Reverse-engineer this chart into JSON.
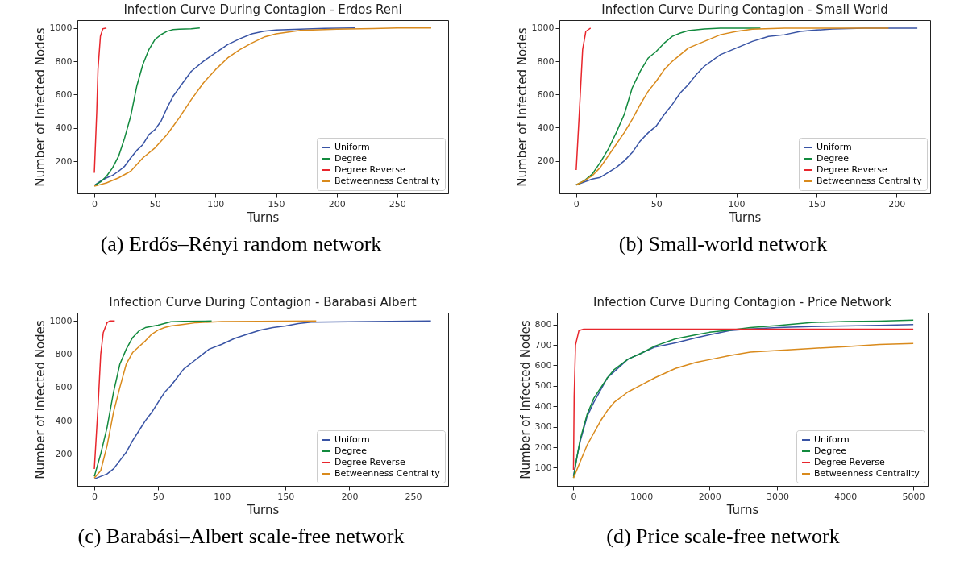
{
  "chart_data": [
    {
      "type": "line",
      "title": "Infection Curve During Contagion - Erdos Reni",
      "xlabel": "Turns",
      "ylabel": "Number of Infected Nodes",
      "xlim": [
        -14,
        292
      ],
      "ylim": [
        7,
        1047
      ],
      "xticks": [
        0,
        50,
        100,
        150,
        200,
        250
      ],
      "yticks": [
        200,
        400,
        600,
        800,
        1000
      ],
      "grid": false,
      "legend": "bottom right",
      "marker": "none",
      "line_style": "solid",
      "annotations": [
        "(a) Erdős–Rényi random network"
      ],
      "series": [
        {
          "name": "Uniform",
          "color": "#3853a4",
          "x": [
            0,
            5,
            10,
            15,
            20,
            25,
            30,
            35,
            40,
            45,
            50,
            55,
            60,
            65,
            70,
            75,
            80,
            90,
            100,
            110,
            120,
            130,
            140,
            150,
            170,
            190,
            215
          ],
          "values": [
            55,
            80,
            100,
            115,
            140,
            170,
            220,
            265,
            300,
            360,
            390,
            440,
            520,
            590,
            640,
            690,
            740,
            800,
            850,
            900,
            935,
            965,
            980,
            988,
            992,
            998,
            1000
          ]
        },
        {
          "name": "Degree",
          "color": "#128a3e",
          "x": [
            0,
            5,
            10,
            15,
            20,
            25,
            30,
            35,
            40,
            45,
            50,
            55,
            60,
            65,
            70,
            80,
            87
          ],
          "values": [
            55,
            75,
            110,
            160,
            230,
            340,
            470,
            650,
            780,
            870,
            930,
            960,
            980,
            990,
            992,
            995,
            1000
          ]
        },
        {
          "name": "Degree Reverse",
          "color": "#e8262c",
          "x": [
            0,
            2,
            3,
            5,
            7,
            10
          ],
          "values": [
            130,
            500,
            750,
            950,
            995,
            1000
          ]
        },
        {
          "name": "Betweenness Centrality",
          "color": "#d98a1c",
          "x": [
            0,
            10,
            20,
            30,
            40,
            50,
            60,
            70,
            80,
            90,
            100,
            110,
            120,
            130,
            140,
            150,
            170,
            200,
            230,
            250,
            278
          ],
          "values": [
            50,
            70,
            100,
            140,
            220,
            280,
            360,
            460,
            570,
            670,
            750,
            820,
            870,
            910,
            945,
            965,
            985,
            992,
            996,
            1000,
            1000
          ]
        }
      ]
    },
    {
      "type": "line",
      "title": "Infection Curve During Contagion - Small World",
      "xlabel": "Turns",
      "ylabel": "Number of Infected Nodes",
      "xlim": [
        -10.5,
        221
      ],
      "ylim": [
        4,
        1048
      ],
      "xticks": [
        0,
        50,
        100,
        150,
        200
      ],
      "yticks": [
        200,
        400,
        600,
        800,
        1000
      ],
      "grid": false,
      "legend": "bottom right",
      "marker": "none",
      "line_style": "solid",
      "annotations": [
        "(b) Small-world network"
      ],
      "series": [
        {
          "name": "Uniform",
          "color": "#3853a4",
          "x": [
            0,
            10,
            15,
            20,
            25,
            30,
            35,
            40,
            45,
            50,
            55,
            60,
            65,
            70,
            75,
            80,
            90,
            100,
            110,
            120,
            130,
            140,
            150,
            160,
            180,
            213
          ],
          "values": [
            55,
            90,
            100,
            130,
            160,
            200,
            250,
            320,
            370,
            410,
            480,
            540,
            610,
            660,
            720,
            770,
            840,
            880,
            920,
            950,
            960,
            980,
            988,
            995,
            999,
            1000
          ]
        },
        {
          "name": "Degree",
          "color": "#128a3e",
          "x": [
            0,
            5,
            10,
            15,
            20,
            25,
            30,
            35,
            40,
            45,
            50,
            55,
            60,
            65,
            70,
            80,
            90,
            115
          ],
          "values": [
            55,
            80,
            120,
            190,
            270,
            370,
            480,
            640,
            740,
            820,
            860,
            910,
            950,
            970,
            985,
            995,
            1000,
            1000
          ]
        },
        {
          "name": "Degree Reverse",
          "color": "#e8262c",
          "x": [
            0,
            2,
            4,
            6,
            9
          ],
          "values": [
            145,
            500,
            870,
            980,
            1000
          ]
        },
        {
          "name": "Betweenness Centrality",
          "color": "#d98a1c",
          "x": [
            0,
            5,
            10,
            15,
            20,
            25,
            30,
            35,
            40,
            45,
            50,
            55,
            60,
            65,
            70,
            80,
            90,
            100,
            110,
            130,
            195
          ],
          "values": [
            55,
            80,
            110,
            160,
            230,
            300,
            370,
            450,
            540,
            620,
            680,
            750,
            800,
            840,
            880,
            920,
            960,
            980,
            993,
            1000,
            1000
          ]
        }
      ]
    },
    {
      "type": "line",
      "title": "Infection Curve During Contagion - Barabasi Albert",
      "xlabel": "Turns",
      "ylabel": "Number of Infected Nodes",
      "xlim": [
        -13.3,
        277.5
      ],
      "ylim": [
        8,
        1050
      ],
      "xticks": [
        0,
        50,
        100,
        150,
        200,
        250
      ],
      "yticks": [
        200,
        400,
        600,
        800,
        1000
      ],
      "grid": false,
      "legend": "bottom right",
      "marker": "none",
      "line_style": "solid",
      "annotations": [
        "(c) Barabási–Albert scale-free network"
      ],
      "series": [
        {
          "name": "Uniform",
          "color": "#3853a4",
          "x": [
            0,
            10,
            15,
            20,
            25,
            30,
            35,
            40,
            45,
            50,
            55,
            60,
            65,
            70,
            80,
            90,
            100,
            110,
            120,
            130,
            140,
            150,
            160,
            170,
            200,
            264
          ],
          "values": [
            50,
            80,
            110,
            160,
            210,
            280,
            340,
            400,
            450,
            510,
            570,
            610,
            660,
            710,
            770,
            830,
            860,
            895,
            920,
            945,
            960,
            970,
            985,
            993,
            996,
            1000
          ]
        },
        {
          "name": "Degree",
          "color": "#128a3e",
          "x": [
            0,
            5,
            10,
            15,
            20,
            25,
            30,
            35,
            40,
            50,
            60,
            70,
            92
          ],
          "values": [
            65,
            200,
            360,
            570,
            740,
            830,
            900,
            940,
            960,
            975,
            995,
            998,
            1000
          ]
        },
        {
          "name": "Degree Reverse",
          "color": "#e8262c",
          "x": [
            0,
            3,
            5,
            7,
            10,
            12,
            16
          ],
          "values": [
            110,
            500,
            800,
            930,
            990,
            1000,
            1000
          ]
        },
        {
          "name": "Betweenness Centrality",
          "color": "#d98a1c",
          "x": [
            0,
            5,
            10,
            15,
            20,
            25,
            30,
            35,
            40,
            45,
            50,
            55,
            60,
            70,
            80,
            100,
            130,
            174
          ],
          "values": [
            55,
            100,
            250,
            450,
            600,
            740,
            810,
            845,
            880,
            920,
            945,
            960,
            970,
            980,
            990,
            997,
            998,
            1000
          ]
        }
      ]
    },
    {
      "type": "line",
      "title": "Infection Curve During Contagion - Price Network",
      "xlabel": "Turns",
      "ylabel": "Number of Infected Nodes",
      "xlim": [
        -243,
        5212
      ],
      "ylim": [
        11,
        858
      ],
      "xticks": [
        0,
        1000,
        2000,
        3000,
        4000,
        5000
      ],
      "yticks": [
        100,
        200,
        300,
        400,
        500,
        600,
        700,
        800
      ],
      "grid": false,
      "legend": "bottom right",
      "marker": "none",
      "line_style": "solid",
      "annotations": [
        "(d) Price scale-free network"
      ],
      "series": [
        {
          "name": "Uniform",
          "color": "#3853a4",
          "x": [
            0,
            50,
            100,
            200,
            300,
            400,
            500,
            600,
            800,
            1000,
            1200,
            1500,
            1800,
            2000,
            2300,
            2600,
            3000,
            3500,
            4000,
            4500,
            5000
          ],
          "values": [
            60,
            150,
            230,
            350,
            420,
            480,
            540,
            570,
            630,
            660,
            690,
            710,
            735,
            750,
            770,
            778,
            785,
            790,
            793,
            796,
            800
          ]
        },
        {
          "name": "Degree",
          "color": "#128a3e",
          "x": [
            0,
            50,
            100,
            200,
            300,
            400,
            500,
            600,
            800,
            1000,
            1200,
            1500,
            1800,
            2000,
            2300,
            2600,
            3000,
            3500,
            4000,
            4500,
            5000
          ],
          "values": [
            50,
            150,
            240,
            360,
            440,
            490,
            540,
            580,
            630,
            660,
            695,
            730,
            750,
            762,
            772,
            785,
            795,
            810,
            815,
            817,
            822
          ]
        },
        {
          "name": "Degree Reverse",
          "color": "#e8262c",
          "x": [
            0,
            10,
            30,
            80,
            150,
            5000
          ],
          "values": [
            90,
            450,
            700,
            770,
            777,
            777
          ]
        },
        {
          "name": "Betweenness Centrality",
          "color": "#d98a1c",
          "x": [
            0,
            100,
            200,
            300,
            400,
            500,
            600,
            800,
            1000,
            1200,
            1500,
            1800,
            2000,
            2300,
            2600,
            3000,
            3500,
            4000,
            4500,
            5000
          ],
          "values": [
            50,
            130,
            210,
            270,
            330,
            380,
            420,
            470,
            505,
            540,
            585,
            615,
            628,
            648,
            665,
            673,
            683,
            692,
            702,
            707
          ]
        }
      ]
    }
  ]
}
